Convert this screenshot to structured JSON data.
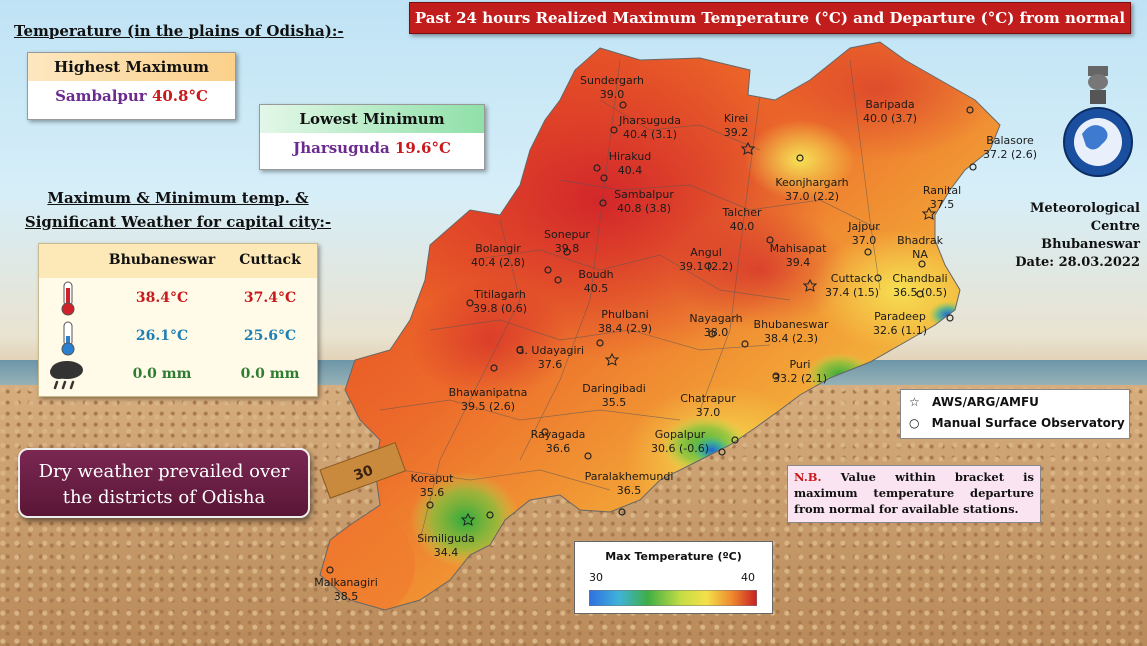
{
  "title": "Past 24 hours Realized Maximum Temperature (°C) and Departure (°C) from normal",
  "plains": {
    "heading": "Temperature (in the plains of  Odisha):-",
    "highest_label": "Highest Maximum",
    "highest_station": "Sambalpur",
    "highest_value": "40.8°C",
    "lowest_label": "Lowest Minimum",
    "lowest_station": "Jharsuguda",
    "lowest_value": "19.6°C"
  },
  "capital": {
    "heading_line1": "Maximum & Minimum  temp. &",
    "heading_line2": "Significant Weather for capital city:-",
    "col1": "Bhubaneswar",
    "col2": "Cuttack",
    "rows": [
      {
        "icon": "thermometer-hot-icon",
        "v1": "38.4°C",
        "v2": "37.4°C",
        "color": "#c8191c"
      },
      {
        "icon": "thermometer-cold-icon",
        "v1": "26.1°C",
        "v2": "25.6°C",
        "color": "#1f7fb5"
      },
      {
        "icon": "rain-cloud-icon",
        "v1": "0.0 mm",
        "v2": "0.0 mm",
        "color": "#2e7d32"
      }
    ]
  },
  "dry_weather": {
    "line1": "Dry weather prevailed over",
    "line2": "the districts of Odisha"
  },
  "centre": {
    "line1": "Meteorological Centre",
    "line2": "Bhubaneswar",
    "line3": "Date: 28.03.2022"
  },
  "symbol_legend": {
    "star": "AWS/ARG/AMFU",
    "circle": "Manual Surface Observatory"
  },
  "note": {
    "prefix": "N.B.",
    "text": "Value within bracket is maximum temperature departure from normal for available stations."
  },
  "scale": {
    "title": "Max Temperature (ºC)",
    "min": "30",
    "max": "40"
  },
  "stations": [
    {
      "name": "Sundergarh",
      "value": "39.0"
    },
    {
      "name": "Jharsuguda",
      "value": "40.4 (3.1)"
    },
    {
      "name": "Kirei",
      "value": "39.2"
    },
    {
      "name": "Hirakud",
      "value": "40.4"
    },
    {
      "name": "Sambalpur",
      "value": "40.8 (3.8)"
    },
    {
      "name": "Baripada",
      "value": "40.0 (3.7)"
    },
    {
      "name": "Balasore",
      "value": "37.2 (2.6)"
    },
    {
      "name": "Keonjhargarh",
      "value": "37.0 (2.2)"
    },
    {
      "name": "Ranital",
      "value": "37.5"
    },
    {
      "name": "Sonepur",
      "value": "39.8"
    },
    {
      "name": "Talcher",
      "value": "40.0"
    },
    {
      "name": "Jajpur",
      "value": "37.0"
    },
    {
      "name": "Bolangir",
      "value": "40.4 (2.8)"
    },
    {
      "name": "Bhadrak",
      "value": "NA"
    },
    {
      "name": "Angul",
      "value": "39.1 (2.2)"
    },
    {
      "name": "Mahisapat",
      "value": "39.4"
    },
    {
      "name": "Boudh",
      "value": "40.5"
    },
    {
      "name": "Cuttack",
      "value": "37.4 (1.5)"
    },
    {
      "name": "Chandbali",
      "value": "36.5 (0.5)"
    },
    {
      "name": "Titilagarh",
      "value": "39.8 (0.6)"
    },
    {
      "name": "Phulbani",
      "value": "38.4 (2.9)"
    },
    {
      "name": "Nayagarh",
      "value": "38.0"
    },
    {
      "name": "Bhubaneswar",
      "value": "38.4 (2.3)"
    },
    {
      "name": "Paradeep",
      "value": "32.6 (1.1)"
    },
    {
      "name": "G. Udayagiri",
      "value": "37.6"
    },
    {
      "name": "Puri",
      "value": "33.2 (2.1)"
    },
    {
      "name": "Bhawanipatna",
      "value": "39.5 (2.6)"
    },
    {
      "name": "Daringibadi",
      "value": "35.5"
    },
    {
      "name": "Chatrapur",
      "value": "37.0"
    },
    {
      "name": "Rayagada",
      "value": "36.6"
    },
    {
      "name": "Gopalpur",
      "value": "30.6 (-0.6)"
    },
    {
      "name": "Koraput",
      "value": "35.6"
    },
    {
      "name": "Paralakhemundi",
      "value": "36.5"
    },
    {
      "name": "Similiguda",
      "value": "34.4"
    },
    {
      "name": "Malkanagiri",
      "value": "38.5"
    }
  ],
  "ruler_text": "30"
}
